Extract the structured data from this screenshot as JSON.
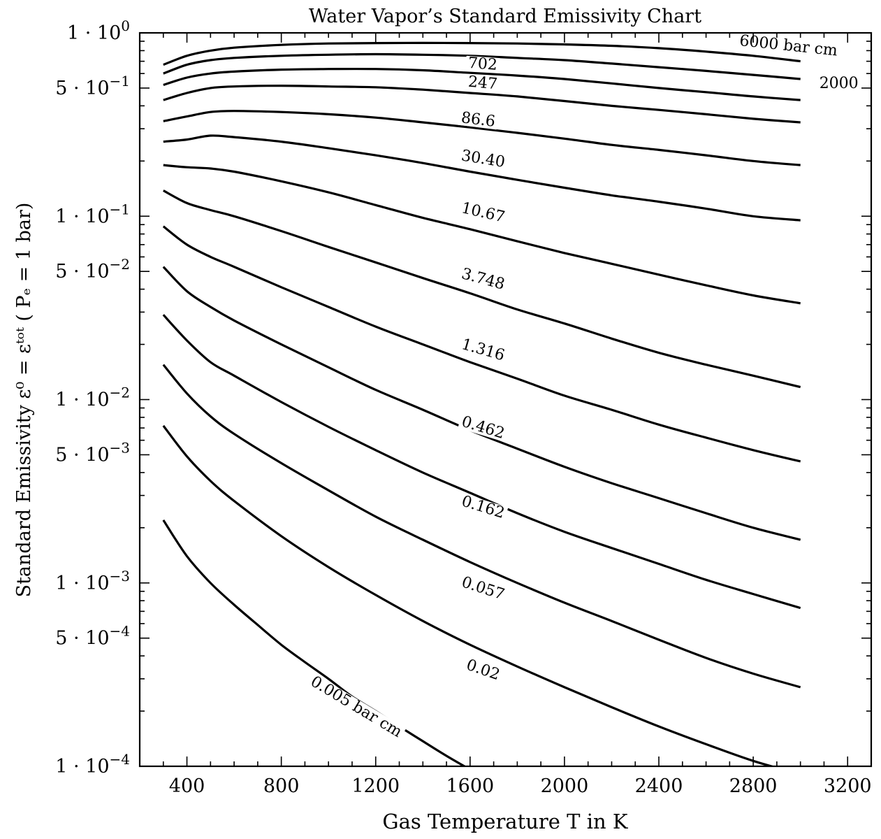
{
  "chart_data": {
    "type": "line",
    "title": "Water Vapor’s Standard Emissivity Chart",
    "xlabel": "Gas Temperature  T in K",
    "ylabel": "Standard Emissivity ε⁰ = εᵗᵒᵗ ( Pₑ = 1 bar)",
    "xlim": [
      200,
      3300
    ],
    "ylim": [
      0.0001,
      1
    ],
    "yscale": "log",
    "grid": false,
    "x_ticks": [
      400,
      800,
      1200,
      1600,
      2000,
      2400,
      2800,
      3200
    ],
    "x_tick_labels": [
      "400",
      "800",
      "1200",
      "1600",
      "2000",
      "2400",
      "2800",
      "3200"
    ],
    "y_ticks": [
      {
        "value": 1,
        "mantissa": "1",
        "exponent": "0"
      },
      {
        "value": 0.5,
        "mantissa": "5",
        "exponent": "−1"
      },
      {
        "value": 0.1,
        "mantissa": "1",
        "exponent": "−1"
      },
      {
        "value": 0.05,
        "mantissa": "5",
        "exponent": "−2"
      },
      {
        "value": 0.01,
        "mantissa": "1",
        "exponent": "−2"
      },
      {
        "value": 0.005,
        "mantissa": "5",
        "exponent": "−3"
      },
      {
        "value": 0.001,
        "mantissa": "1",
        "exponent": "−3"
      },
      {
        "value": 0.0005,
        "mantissa": "5",
        "exponent": "−4"
      },
      {
        "value": 0.0001,
        "mantissa": "1",
        "exponent": "−4"
      }
    ],
    "series": [
      {
        "name": "6000 bar cm",
        "label_at": [
          2740,
          0.855
        ],
        "label_angle": 6,
        "x": [
          300,
          400,
          500,
          600,
          800,
          1000,
          1200,
          1400,
          1600,
          1800,
          2000,
          2200,
          2400,
          2600,
          2800,
          3000
        ],
        "values": [
          0.67,
          0.75,
          0.8,
          0.83,
          0.86,
          0.875,
          0.88,
          0.882,
          0.88,
          0.875,
          0.865,
          0.85,
          0.825,
          0.79,
          0.75,
          0.7
        ]
      },
      {
        "name": "2000",
        "label_at": [
          3080,
          0.5
        ],
        "label_angle": 0,
        "x": [
          300,
          400,
          500,
          600,
          800,
          1000,
          1200,
          1400,
          1600,
          1800,
          2000,
          2200,
          2400,
          2600,
          2800,
          3000
        ],
        "values": [
          0.6,
          0.67,
          0.71,
          0.73,
          0.75,
          0.76,
          0.765,
          0.76,
          0.75,
          0.73,
          0.71,
          0.68,
          0.65,
          0.62,
          0.59,
          0.56
        ]
      },
      {
        "name": "702",
        "label_at": [
          1590,
          0.645
        ],
        "label_angle": 4,
        "x": [
          300,
          400,
          500,
          600,
          800,
          1000,
          1200,
          1400,
          1600,
          1800,
          2000,
          2200,
          2400,
          2600,
          2800,
          3000
        ],
        "values": [
          0.52,
          0.57,
          0.6,
          0.615,
          0.63,
          0.635,
          0.635,
          0.625,
          0.605,
          0.585,
          0.56,
          0.53,
          0.5,
          0.475,
          0.45,
          0.43
        ]
      },
      {
        "name": "247",
        "label_at": [
          1590,
          0.51
        ],
        "label_angle": 5,
        "x": [
          300,
          400,
          500,
          600,
          800,
          1000,
          1200,
          1400,
          1600,
          1800,
          2000,
          2200,
          2400,
          2600,
          2800,
          3000
        ],
        "values": [
          0.43,
          0.47,
          0.5,
          0.51,
          0.515,
          0.51,
          0.505,
          0.49,
          0.47,
          0.45,
          0.425,
          0.4,
          0.38,
          0.36,
          0.34,
          0.325
        ]
      },
      {
        "name": "86.6",
        "label_at": [
          1560,
          0.325
        ],
        "label_angle": 7,
        "x": [
          300,
          400,
          500,
          600,
          800,
          1000,
          1200,
          1400,
          1600,
          1800,
          2000,
          2200,
          2400,
          2600,
          2800,
          3000
        ],
        "values": [
          0.33,
          0.35,
          0.37,
          0.375,
          0.37,
          0.36,
          0.345,
          0.325,
          0.305,
          0.285,
          0.265,
          0.245,
          0.23,
          0.215,
          0.2,
          0.19
        ]
      },
      {
        "name": "30.40",
        "label_at": [
          1560,
          0.202
        ],
        "label_angle": 9,
        "x": [
          300,
          400,
          500,
          600,
          800,
          1000,
          1200,
          1400,
          1600,
          1800,
          2000,
          2200,
          2400,
          2600,
          2800,
          3000
        ],
        "values": [
          0.255,
          0.262,
          0.275,
          0.27,
          0.255,
          0.235,
          0.215,
          0.195,
          0.175,
          0.158,
          0.143,
          0.13,
          0.12,
          0.11,
          0.1,
          0.095
        ]
      },
      {
        "name": "10.67",
        "label_at": [
          1560,
          0.105
        ],
        "label_angle": 13,
        "x": [
          300,
          400,
          500,
          600,
          800,
          1000,
          1200,
          1400,
          1600,
          1800,
          2000,
          2200,
          2400,
          2600,
          2800,
          3000
        ],
        "values": [
          0.19,
          0.185,
          0.182,
          0.175,
          0.155,
          0.135,
          0.115,
          0.098,
          0.085,
          0.073,
          0.063,
          0.055,
          0.048,
          0.042,
          0.037,
          0.0335
        ]
      },
      {
        "name": "3.748",
        "label_at": [
          1560,
          0.046
        ],
        "label_angle": 15,
        "x": [
          300,
          400,
          500,
          600,
          800,
          1000,
          1200,
          1400,
          1600,
          1800,
          2000,
          2200,
          2400,
          2600,
          2800,
          3000
        ],
        "values": [
          0.138,
          0.118,
          0.108,
          0.1,
          0.083,
          0.068,
          0.056,
          0.046,
          0.038,
          0.031,
          0.026,
          0.0215,
          0.018,
          0.0155,
          0.0135,
          0.0117
        ]
      },
      {
        "name": "1.316",
        "label_at": [
          1560,
          0.019
        ],
        "label_angle": 16,
        "x": [
          300,
          400,
          500,
          600,
          800,
          1000,
          1200,
          1400,
          1600,
          1800,
          2000,
          2200,
          2400,
          2600,
          2800,
          3000
        ],
        "values": [
          0.088,
          0.07,
          0.06,
          0.053,
          0.041,
          0.032,
          0.025,
          0.02,
          0.016,
          0.013,
          0.0105,
          0.0088,
          0.0073,
          0.0062,
          0.0053,
          0.0046
        ]
      },
      {
        "name": "0.462",
        "label_at": [
          1560,
          0.0072
        ],
        "label_angle": 17,
        "x": [
          300,
          400,
          500,
          600,
          800,
          1000,
          1200,
          1400,
          1600,
          1800,
          2000,
          2200,
          2400,
          2600,
          2800,
          3000
        ],
        "values": [
          0.053,
          0.039,
          0.032,
          0.027,
          0.02,
          0.015,
          0.0113,
          0.0088,
          0.0068,
          0.0054,
          0.0043,
          0.0035,
          0.0029,
          0.0024,
          0.002,
          0.00172
        ]
      },
      {
        "name": "0.162",
        "label_at": [
          1560,
          0.00265
        ],
        "label_angle": 17,
        "x": [
          300,
          400,
          500,
          600,
          800,
          1000,
          1200,
          1400,
          1600,
          1800,
          2000,
          2200,
          2400,
          2600,
          2800,
          3000
        ],
        "values": [
          0.029,
          0.021,
          0.016,
          0.0135,
          0.0097,
          0.0071,
          0.0053,
          0.004,
          0.0031,
          0.0024,
          0.0019,
          0.00155,
          0.00127,
          0.00104,
          0.00087,
          0.00073
        ]
      },
      {
        "name": "0.057",
        "label_at": [
          1560,
          0.00096
        ],
        "label_angle": 18,
        "x": [
          300,
          400,
          500,
          600,
          800,
          1000,
          1200,
          1400,
          1600,
          1800,
          2000,
          2200,
          2400,
          2600,
          2800,
          3000
        ],
        "values": [
          0.0155,
          0.0108,
          0.0081,
          0.0065,
          0.0045,
          0.0032,
          0.0023,
          0.00172,
          0.0013,
          0.001,
          0.00078,
          0.00062,
          0.00049,
          0.00039,
          0.00032,
          0.00027
        ]
      },
      {
        "name": "0.02",
        "label_at": [
          1580,
          0.00034
        ],
        "label_angle": 19,
        "x": [
          300,
          400,
          500,
          600,
          800,
          1000,
          1200,
          1400,
          1600,
          1800,
          2000,
          2200,
          2400,
          2600,
          2800,
          3000
        ],
        "values": [
          0.0072,
          0.0049,
          0.0036,
          0.0028,
          0.0018,
          0.00122,
          0.00086,
          0.00062,
          0.00046,
          0.00035,
          0.00027,
          0.00021,
          0.000165,
          0.000132,
          0.000107,
          9.05e-05
        ]
      },
      {
        "name": "0.005 bar cm",
        "label_at": [
          920,
          0.00028
        ],
        "label_angle": 31,
        "x": [
          300,
          400,
          500,
          600,
          700,
          800,
          900,
          1000,
          1100,
          1200,
          1300,
          1400,
          1500,
          1600,
          1700
        ],
        "values": [
          0.0022,
          0.0014,
          0.001,
          0.00076,
          0.00059,
          0.00046,
          0.00037,
          0.0003,
          0.00024,
          0.0002,
          0.000165,
          0.000137,
          0.000114,
          9.6e-05,
          8.1e-05
        ]
      }
    ]
  }
}
